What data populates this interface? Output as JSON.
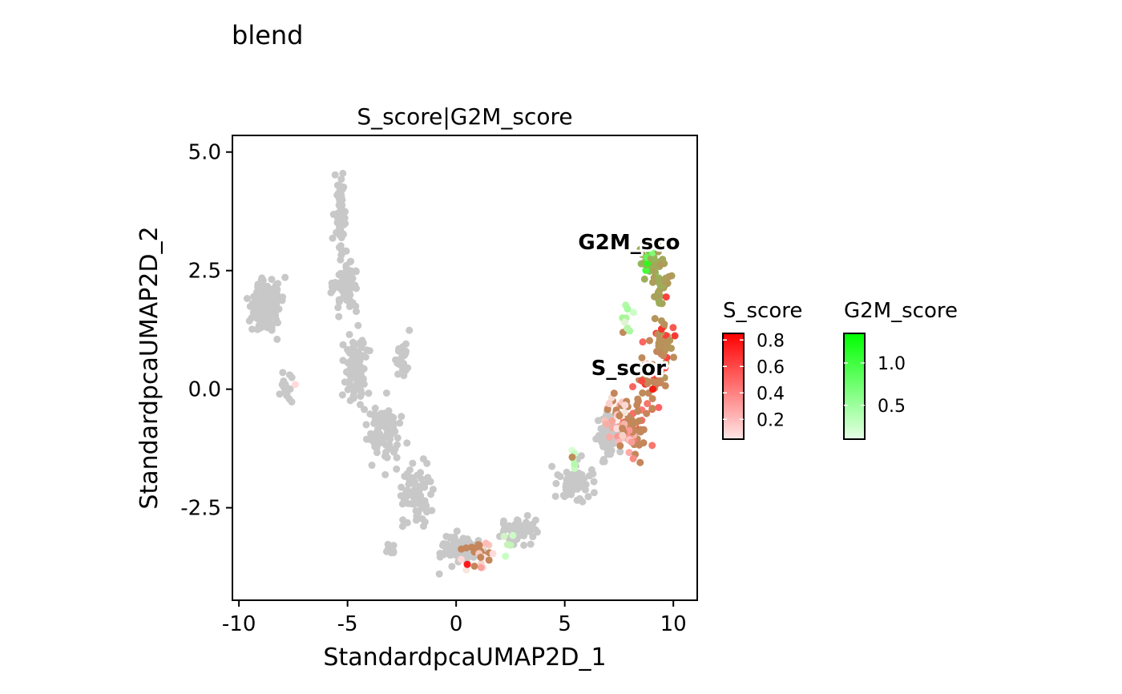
{
  "figure_title": "blend",
  "chart_data": {
    "type": "scatter",
    "title": "S_score|G2M_score",
    "xlabel": "StandardpcaUMAP2D_1",
    "ylabel": "StandardpcaUMAP2D_2",
    "xlim": [
      -10.3,
      11.1
    ],
    "ylim": [
      -4.45,
      5.35
    ],
    "x_ticks": [
      -10,
      -5,
      0,
      5,
      10
    ],
    "x_tick_labels": [
      "-10",
      "-5",
      "0",
      "5",
      "10"
    ],
    "y_ticks": [
      -2.5,
      0.0,
      2.5,
      5.0
    ],
    "y_tick_labels": [
      "-2.5",
      "0.0",
      "2.5",
      "5.0"
    ],
    "grid": false,
    "background_point_color": "#c8c8c8",
    "annotations": [
      {
        "text": "G2M_sco",
        "x": 8.2,
        "y": 3.1
      },
      {
        "text": "S_scor",
        "x": 8.8,
        "y": 0.45
      }
    ],
    "legends": [
      {
        "title": "S_score",
        "colors": [
          "#ffe6e6",
          "#ff0000"
        ],
        "range": [
          0.05,
          0.85
        ],
        "ticks": [
          0.2,
          0.4,
          0.6,
          0.8
        ],
        "tick_labels": [
          "0.2",
          "0.4",
          "0.6",
          "0.8"
        ]
      },
      {
        "title": "G2M_score",
        "colors": [
          "#e6ffe6",
          "#00ff00"
        ],
        "range": [
          0.1,
          1.35
        ],
        "ticks": [
          0.5,
          1.0
        ],
        "tick_labels": [
          "0.5",
          "1.0"
        ]
      }
    ],
    "legend_position": "right",
    "regions_gray": [
      {
        "x": -8.7,
        "y": 1.7,
        "sx": 0.6,
        "sy": 0.45,
        "n": 160
      },
      {
        "x": -5.3,
        "y": 3.7,
        "sx": 0.22,
        "sy": 0.7,
        "n": 70
      },
      {
        "x": -5.1,
        "y": 2.2,
        "sx": 0.5,
        "sy": 0.5,
        "n": 80
      },
      {
        "x": -4.6,
        "y": 0.4,
        "sx": 0.5,
        "sy": 0.6,
        "n": 90
      },
      {
        "x": -3.3,
        "y": -0.9,
        "sx": 0.6,
        "sy": 0.5,
        "n": 90
      },
      {
        "x": -1.8,
        "y": -2.2,
        "sx": 0.6,
        "sy": 0.5,
        "n": 80
      },
      {
        "x": 0.2,
        "y": -3.4,
        "sx": 0.8,
        "sy": 0.25,
        "n": 90
      },
      {
        "x": -3.0,
        "y": -3.4,
        "sx": 0.2,
        "sy": 0.1,
        "n": 12
      },
      {
        "x": 2.8,
        "y": -3.0,
        "sx": 0.8,
        "sy": 0.25,
        "n": 50
      },
      {
        "x": 5.5,
        "y": -2.0,
        "sx": 0.7,
        "sy": 0.35,
        "n": 60
      },
      {
        "x": 7.0,
        "y": -1.0,
        "sx": 0.5,
        "sy": 0.4,
        "n": 60
      },
      {
        "x": -2.5,
        "y": 0.6,
        "sx": 0.3,
        "sy": 0.5,
        "n": 25
      },
      {
        "x": -7.8,
        "y": 0.0,
        "sx": 0.3,
        "sy": 0.2,
        "n": 20
      }
    ],
    "regions_colored": [
      {
        "x": 8.9,
        "y": 2.7,
        "sx": 0.4,
        "sy": 0.3,
        "n": 35,
        "s": [
          0.0,
          0.15
        ],
        "g": [
          0.6,
          1.35
        ]
      },
      {
        "x": 9.5,
        "y": 2.2,
        "sx": 0.3,
        "sy": 0.5,
        "n": 30,
        "s": [
          0.3,
          0.6
        ],
        "g": [
          0.5,
          1.0
        ]
      },
      {
        "x": 9.6,
        "y": 1.0,
        "sx": 0.35,
        "sy": 0.6,
        "n": 40,
        "s": [
          0.55,
          0.85
        ],
        "g": [
          0.0,
          0.5
        ]
      },
      {
        "x": 8.9,
        "y": 0.2,
        "sx": 0.5,
        "sy": 0.5,
        "n": 40,
        "s": [
          0.5,
          0.85
        ],
        "g": [
          0.0,
          0.2
        ]
      },
      {
        "x": 8.2,
        "y": -0.8,
        "sx": 0.5,
        "sy": 0.5,
        "n": 45,
        "s": [
          0.2,
          0.7
        ],
        "g": [
          0.0,
          0.15
        ]
      },
      {
        "x": 7.3,
        "y": -0.6,
        "sx": 0.6,
        "sy": 0.4,
        "n": 35,
        "s": [
          0.05,
          0.35
        ],
        "g": [
          0.0,
          0.1
        ]
      },
      {
        "x": 7.8,
        "y": 1.4,
        "sx": 0.3,
        "sy": 0.4,
        "n": 10,
        "s": [
          0.0,
          0.05
        ],
        "g": [
          0.1,
          0.6
        ]
      },
      {
        "x": 5.4,
        "y": -1.5,
        "sx": 0.2,
        "sy": 0.2,
        "n": 6,
        "s": [
          0.0,
          0.05
        ],
        "g": [
          0.2,
          0.5
        ]
      },
      {
        "x": 1.0,
        "y": -3.5,
        "sx": 0.7,
        "sy": 0.3,
        "n": 25,
        "s": [
          0.05,
          0.35
        ],
        "g": [
          0.0,
          0.1
        ]
      },
      {
        "x": 2.5,
        "y": -3.3,
        "sx": 0.4,
        "sy": 0.2,
        "n": 5,
        "s": [
          0.0,
          0.05
        ],
        "g": [
          0.2,
          0.4
        ]
      },
      {
        "x": -7.4,
        "y": 0.1,
        "sx": 0.05,
        "sy": 0.05,
        "n": 1,
        "s": [
          0.1,
          0.15
        ],
        "g": [
          0.0,
          0.0
        ]
      },
      {
        "x": 0.5,
        "y": -3.7,
        "sx": 0.02,
        "sy": 0.02,
        "n": 1,
        "s": [
          0.85,
          0.85
        ],
        "g": [
          0.0,
          0.0
        ]
      }
    ]
  }
}
